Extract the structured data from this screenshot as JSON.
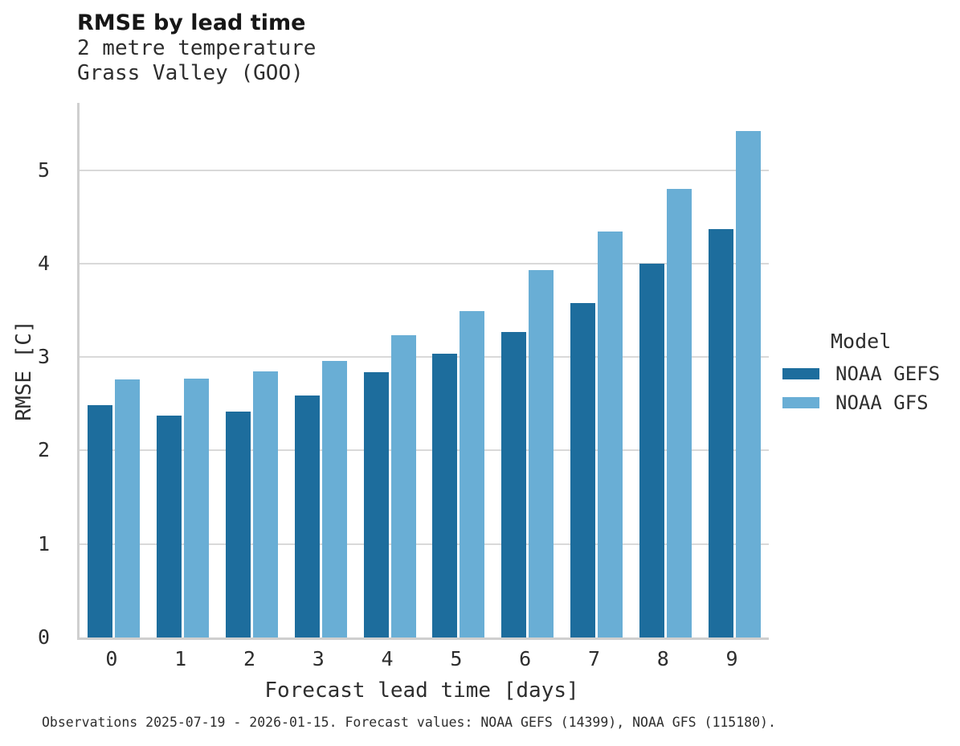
{
  "header": {
    "title": "RMSE by lead time",
    "subtitle1": "2 metre temperature",
    "subtitle2": "Grass Valley (GOO)"
  },
  "chart_data": {
    "type": "bar",
    "title": "RMSE by lead time",
    "subtitle": [
      "2 metre temperature",
      "Grass Valley (GOO)"
    ],
    "categories": [
      "0",
      "1",
      "2",
      "3",
      "4",
      "5",
      "6",
      "7",
      "8",
      "9"
    ],
    "series": [
      {
        "name": "NOAA GEFS",
        "color": "#1d6d9d",
        "values": [
          2.49,
          2.37,
          2.42,
          2.59,
          2.84,
          3.04,
          3.27,
          3.58,
          4.0,
          4.37
        ]
      },
      {
        "name": "NOAA GFS",
        "color": "#69aed5",
        "values": [
          2.76,
          2.77,
          2.85,
          2.96,
          3.23,
          3.49,
          3.93,
          4.34,
          4.8,
          5.42
        ]
      }
    ],
    "xlabel": "Forecast lead time [days]",
    "ylabel": "RMSE [C]",
    "ylim": [
      0,
      5.72
    ],
    "yticks": [
      0,
      1,
      2,
      3,
      4,
      5
    ],
    "grid": "horizontal",
    "legend_title": "Model",
    "legend_position": "right"
  },
  "caption": "Observations 2025-07-19 - 2026-01-15. Forecast values: NOAA GEFS (14399), NOAA GFS (115180)."
}
